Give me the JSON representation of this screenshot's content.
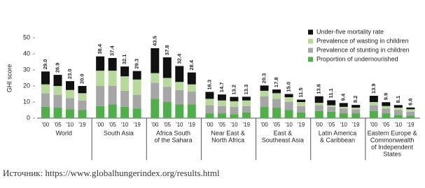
{
  "chart_data": {
    "type": "stacked_bar",
    "y_label": "GHI score",
    "ylim": [
      0,
      50
    ],
    "yticks": [
      0,
      10,
      20,
      30,
      40,
      50
    ],
    "categories": [
      "'00",
      "'05",
      "'10",
      "'19",
      "'00",
      "'05",
      "'10",
      "'19",
      "'00",
      "'05",
      "'10",
      "'19",
      "'00",
      "'05",
      "'10",
      "'19",
      "'00",
      "'05",
      "'10",
      "'19",
      "'00",
      "'05",
      "'10",
      "'19",
      "'00",
      "'05",
      "'10",
      "'19"
    ],
    "groups": [
      [
        "World"
      ],
      [
        "South Asia"
      ],
      [
        "Africa South",
        "of the Sahara"
      ],
      [
        "Near East &",
        "North Africa"
      ],
      [
        "East &",
        "Southeast Asia"
      ],
      [
        "Latin America",
        "& Caribbean"
      ],
      [
        "Eastern Europe &",
        "Commonwealth",
        "of Independent",
        "States"
      ]
    ],
    "series": [
      {
        "name": "Proportion of undernourished",
        "color": "#4fb04a",
        "values": [
          7,
          6.5,
          5.5,
          5,
          7.5,
          8.5,
          7,
          6,
          12,
          10,
          8.5,
          8.5,
          3,
          3,
          2.5,
          3.5,
          7,
          6.5,
          5,
          3.5,
          4.5,
          4,
          3,
          3,
          4.5,
          3,
          2,
          1.5
        ]
      },
      {
        "name": "Prevalence of stunting in children",
        "color": "#a6a6a6",
        "values": [
          8.5,
          8,
          7,
          6,
          12.5,
          11.5,
          10,
          8.5,
          10,
          9.5,
          9,
          8,
          5,
          4.5,
          4.5,
          4,
          6.5,
          5.5,
          5,
          4,
          3.5,
          3,
          3,
          2.5,
          3.5,
          3,
          3,
          2.5
        ]
      },
      {
        "name": "Prevalence of wasting in children",
        "color": "#b6d99c",
        "values": [
          5.5,
          5.5,
          5,
          4.5,
          9.5,
          9.5,
          9,
          9.5,
          6,
          5.5,
          5,
          4.5,
          4,
          3.5,
          3.5,
          3.5,
          3.5,
          3.5,
          3,
          2.5,
          1.5,
          1,
          1,
          1,
          2,
          1.5,
          1.5,
          1.5
        ]
      },
      {
        "name": "Under-five mortality rate",
        "color": "#111111",
        "values": [
          8,
          6.9,
          5.5,
          4.5,
          8.9,
          7.9,
          6.1,
          5.3,
          15.5,
          12.8,
          9.9,
          7.4,
          4.3,
          3.7,
          2.7,
          2.3,
          3.3,
          2.3,
          2,
          1.5,
          4.1,
          3.1,
          2.4,
          1.7,
          3.9,
          2.4,
          1.6,
          1.1
        ]
      }
    ],
    "totals": [
      29.0,
      26.9,
      23.0,
      20.0,
      38.4,
      37.4,
      32.1,
      29.3,
      43.5,
      37.8,
      32.4,
      28.4,
      16.3,
      14.7,
      13.2,
      13.3,
      20.3,
      17.8,
      15.0,
      11.5,
      13.6,
      11.1,
      9.4,
      8.2,
      13.9,
      9.9,
      8.1,
      6.6
    ],
    "total_labels": [
      "29.0",
      "26.9",
      "23.0",
      "20.0",
      "38.4",
      "37.4",
      "32.1",
      "29.3",
      "43.5",
      "37.8",
      "32.4",
      "28.4",
      "16.3",
      "14.7",
      "13.2",
      "13.3",
      "20.3",
      "17.8",
      "15.0",
      "11.5",
      "13.6",
      "11.1",
      "9.4",
      "8.2",
      "13.9",
      "9.9",
      "8.1",
      "6.6"
    ],
    "source": "Источник: https://www.globalhungerindex.org/results.html"
  }
}
